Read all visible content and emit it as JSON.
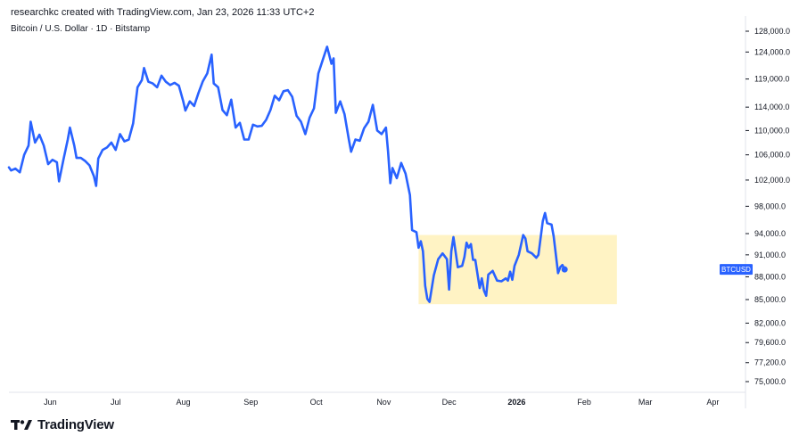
{
  "header": {
    "attribution": "researchkc created with TradingView.com, Jan 23, 2026 11:33 UTC+2",
    "symbol_title": "Bitcoin / U.S. Dollar · 1D · Bitstamp"
  },
  "footer": {
    "logo_text": "TradingView"
  },
  "colors": {
    "line": "#2962ff",
    "highlight": "#fff3c4",
    "label_bg": "#2962ff",
    "axis_text": "#131722"
  },
  "chart_data": {
    "type": "line",
    "scale": "log",
    "ylim": [
      73500,
      130000
    ],
    "y_ticks": [
      {
        "value": 128000,
        "label": "128,000.0"
      },
      {
        "value": 124000,
        "label": "124,000.0"
      },
      {
        "value": 119000,
        "label": "119,000.0"
      },
      {
        "value": 114000,
        "label": "114,000.0"
      },
      {
        "value": 110000,
        "label": "110,000.0"
      },
      {
        "value": 106000,
        "label": "106,000.0"
      },
      {
        "value": 102000,
        "label": "102,000.0"
      },
      {
        "value": 98000,
        "label": "98,000.0"
      },
      {
        "value": 94000,
        "label": "94,000.0"
      },
      {
        "value": 91000,
        "label": "91,000.0"
      },
      {
        "value": 88000,
        "label": "88,000.0"
      },
      {
        "value": 85000,
        "label": "85,000.0"
      },
      {
        "value": 82000,
        "label": "82,000.0"
      },
      {
        "value": 79600,
        "label": "79,600.0"
      },
      {
        "value": 77200,
        "label": "77,200.0"
      },
      {
        "value": 75000,
        "label": "75,000.0"
      }
    ],
    "xlim": [
      "2025-05-13",
      "2026-04-16"
    ],
    "x_ticks": [
      {
        "date": "2025-06-01",
        "label": "Jun",
        "bold": false
      },
      {
        "date": "2025-07-01",
        "label": "Jul",
        "bold": false
      },
      {
        "date": "2025-08-01",
        "label": "Aug",
        "bold": false
      },
      {
        "date": "2025-09-01",
        "label": "Sep",
        "bold": false
      },
      {
        "date": "2025-10-01",
        "label": "Oct",
        "bold": false
      },
      {
        "date": "2025-11-01",
        "label": "Nov",
        "bold": false
      },
      {
        "date": "2025-12-01",
        "label": "Dec",
        "bold": false
      },
      {
        "date": "2026-01-01",
        "label": "2026",
        "bold": true
      },
      {
        "date": "2026-02-01",
        "label": "Feb",
        "bold": false
      },
      {
        "date": "2026-03-01",
        "label": "Mar",
        "bold": false
      },
      {
        "date": "2026-04-01",
        "label": "Apr",
        "bold": false
      }
    ],
    "series": [
      {
        "symbol_label": "BTCUSD",
        "last_value": 89000,
        "points": [
          [
            "2025-05-13",
            104000
          ],
          [
            "2025-05-14",
            103500
          ],
          [
            "2025-05-16",
            103800
          ],
          [
            "2025-05-18",
            103200
          ],
          [
            "2025-05-20",
            106000
          ],
          [
            "2025-05-22",
            107500
          ],
          [
            "2025-05-23",
            111500
          ],
          [
            "2025-05-25",
            108000
          ],
          [
            "2025-05-27",
            109300
          ],
          [
            "2025-05-29",
            107500
          ],
          [
            "2025-05-31",
            104500
          ],
          [
            "2025-06-02",
            105200
          ],
          [
            "2025-06-04",
            104800
          ],
          [
            "2025-06-05",
            101800
          ],
          [
            "2025-06-07",
            105200
          ],
          [
            "2025-06-09",
            108500
          ],
          [
            "2025-06-10",
            110500
          ],
          [
            "2025-06-12",
            107500
          ],
          [
            "2025-06-13",
            105500
          ],
          [
            "2025-06-15",
            105500
          ],
          [
            "2025-06-17",
            105000
          ],
          [
            "2025-06-19",
            104300
          ],
          [
            "2025-06-21",
            102600
          ],
          [
            "2025-06-22",
            101100
          ],
          [
            "2025-06-23",
            105400
          ],
          [
            "2025-06-25",
            106800
          ],
          [
            "2025-06-27",
            107200
          ],
          [
            "2025-06-29",
            108000
          ],
          [
            "2025-07-01",
            106800
          ],
          [
            "2025-07-03",
            109400
          ],
          [
            "2025-07-05",
            108200
          ],
          [
            "2025-07-07",
            108500
          ],
          [
            "2025-07-09",
            111200
          ],
          [
            "2025-07-11",
            117500
          ],
          [
            "2025-07-13",
            118800
          ],
          [
            "2025-07-14",
            121000
          ],
          [
            "2025-07-16",
            118500
          ],
          [
            "2025-07-18",
            118200
          ],
          [
            "2025-07-20",
            117500
          ],
          [
            "2025-07-22",
            119600
          ],
          [
            "2025-07-24",
            118500
          ],
          [
            "2025-07-26",
            117900
          ],
          [
            "2025-07-28",
            118300
          ],
          [
            "2025-07-30",
            117800
          ],
          [
            "2025-08-01",
            115000
          ],
          [
            "2025-08-02",
            113400
          ],
          [
            "2025-08-04",
            115000
          ],
          [
            "2025-08-06",
            114200
          ],
          [
            "2025-08-08",
            116500
          ],
          [
            "2025-08-10",
            118600
          ],
          [
            "2025-08-12",
            120000
          ],
          [
            "2025-08-14",
            123500
          ],
          [
            "2025-08-15",
            118200
          ],
          [
            "2025-08-17",
            117500
          ],
          [
            "2025-08-19",
            113500
          ],
          [
            "2025-08-21",
            112600
          ],
          [
            "2025-08-23",
            115300
          ],
          [
            "2025-08-25",
            110500
          ],
          [
            "2025-08-27",
            111300
          ],
          [
            "2025-08-29",
            108500
          ],
          [
            "2025-08-31",
            108500
          ],
          [
            "2025-09-02",
            111000
          ],
          [
            "2025-09-04",
            110700
          ],
          [
            "2025-09-06",
            110800
          ],
          [
            "2025-09-08",
            111800
          ],
          [
            "2025-09-10",
            113500
          ],
          [
            "2025-09-12",
            116000
          ],
          [
            "2025-09-14",
            115200
          ],
          [
            "2025-09-16",
            116800
          ],
          [
            "2025-09-18",
            117000
          ],
          [
            "2025-09-20",
            115800
          ],
          [
            "2025-09-22",
            112500
          ],
          [
            "2025-09-24",
            111500
          ],
          [
            "2025-09-26",
            109400
          ],
          [
            "2025-09-28",
            112200
          ],
          [
            "2025-09-30",
            113800
          ],
          [
            "2025-10-02",
            120000
          ],
          [
            "2025-10-04",
            122500
          ],
          [
            "2025-10-06",
            125000
          ],
          [
            "2025-10-08",
            121800
          ],
          [
            "2025-10-09",
            122800
          ],
          [
            "2025-10-10",
            113000
          ],
          [
            "2025-10-12",
            115000
          ],
          [
            "2025-10-14",
            112800
          ],
          [
            "2025-10-16",
            108500
          ],
          [
            "2025-10-17",
            106500
          ],
          [
            "2025-10-19",
            108500
          ],
          [
            "2025-10-21",
            108300
          ],
          [
            "2025-10-23",
            110400
          ],
          [
            "2025-10-25",
            111500
          ],
          [
            "2025-10-27",
            114400
          ],
          [
            "2025-10-29",
            110000
          ],
          [
            "2025-10-31",
            109400
          ],
          [
            "2025-11-02",
            110500
          ],
          [
            "2025-11-03",
            106500
          ],
          [
            "2025-11-04",
            101500
          ],
          [
            "2025-11-05",
            103900
          ],
          [
            "2025-11-07",
            102300
          ],
          [
            "2025-11-09",
            104700
          ],
          [
            "2025-11-11",
            103000
          ],
          [
            "2025-11-13",
            99700
          ],
          [
            "2025-11-14",
            94500
          ],
          [
            "2025-11-16",
            94200
          ],
          [
            "2025-11-17",
            92000
          ],
          [
            "2025-11-18",
            92900
          ],
          [
            "2025-11-19",
            91500
          ],
          [
            "2025-11-20",
            86800
          ],
          [
            "2025-11-21",
            85100
          ],
          [
            "2025-11-22",
            84700
          ],
          [
            "2025-11-24",
            88200
          ],
          [
            "2025-11-26",
            90400
          ],
          [
            "2025-11-28",
            91200
          ],
          [
            "2025-11-30",
            90400
          ],
          [
            "2025-12-01",
            86300
          ],
          [
            "2025-12-02",
            91500
          ],
          [
            "2025-12-03",
            93500
          ],
          [
            "2025-12-05",
            89300
          ],
          [
            "2025-12-07",
            89500
          ],
          [
            "2025-12-08",
            90700
          ],
          [
            "2025-12-09",
            92700
          ],
          [
            "2025-12-10",
            92000
          ],
          [
            "2025-12-11",
            92500
          ],
          [
            "2025-12-12",
            90300
          ],
          [
            "2025-12-13",
            90300
          ],
          [
            "2025-12-15",
            86500
          ],
          [
            "2025-12-16",
            87800
          ],
          [
            "2025-12-17",
            86200
          ],
          [
            "2025-12-18",
            85500
          ],
          [
            "2025-12-19",
            88300
          ],
          [
            "2025-12-21",
            88800
          ],
          [
            "2025-12-23",
            87500
          ],
          [
            "2025-12-25",
            87400
          ],
          [
            "2025-12-27",
            87800
          ],
          [
            "2025-12-28",
            87500
          ],
          [
            "2025-12-29",
            88700
          ],
          [
            "2025-12-30",
            87600
          ],
          [
            "2025-12-31",
            89500
          ],
          [
            "2026-01-02",
            91000
          ],
          [
            "2026-01-04",
            93800
          ],
          [
            "2026-01-05",
            93300
          ],
          [
            "2026-01-06",
            91500
          ],
          [
            "2026-01-08",
            91200
          ],
          [
            "2026-01-10",
            90600
          ],
          [
            "2026-01-11",
            91000
          ],
          [
            "2026-01-13",
            95800
          ],
          [
            "2026-01-14",
            97000
          ],
          [
            "2026-01-15",
            95500
          ],
          [
            "2026-01-17",
            95300
          ],
          [
            "2026-01-18",
            93600
          ],
          [
            "2026-01-20",
            88500
          ],
          [
            "2026-01-21",
            89300
          ],
          [
            "2026-01-22",
            89600
          ],
          [
            "2026-01-23",
            89000
          ]
        ]
      }
    ],
    "highlight_box": {
      "x0": "2025-11-17",
      "x1": "2026-02-16",
      "y0": 84400,
      "y1": 93800
    },
    "grid": false
  }
}
